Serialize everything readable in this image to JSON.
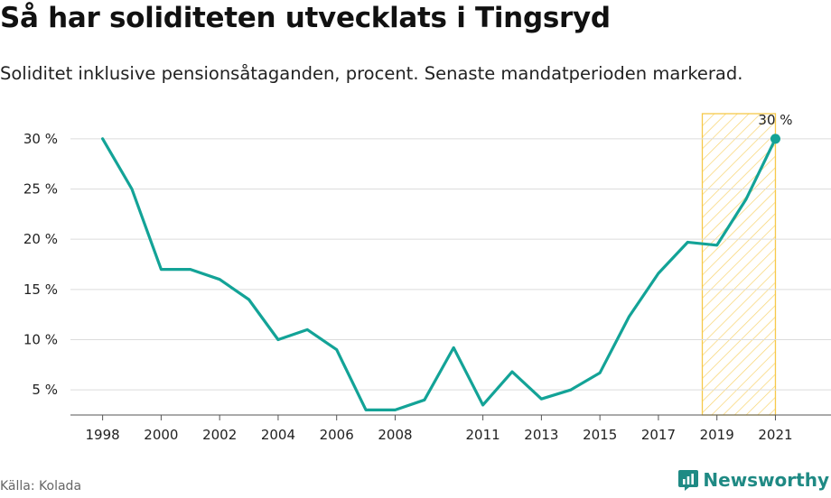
{
  "title": "Så har soliditeten utvecklats i Tingsryd",
  "subtitle": "Soliditet inklusive pensionsåtaganden, procent. Senaste mandatperioden markerad.",
  "source": "Källa: Kolada",
  "brand": {
    "name": "Newsworthy",
    "icon": "newsworthy-logo-icon",
    "color": "#1f8a84"
  },
  "chart_data": {
    "type": "line",
    "x": [
      1998,
      1999,
      2000,
      2001,
      2002,
      2003,
      2004,
      2005,
      2006,
      2007,
      2008,
      2009,
      2010,
      2011,
      2012,
      2013,
      2014,
      2015,
      2016,
      2017,
      2018,
      2019,
      2020,
      2021
    ],
    "values": [
      30,
      25,
      17,
      17,
      16,
      14,
      10,
      11,
      9,
      3,
      3,
      4,
      9.2,
      3.5,
      6.8,
      4.1,
      5,
      6.7,
      12.3,
      16.6,
      19.7,
      19.4,
      24,
      30
    ],
    "x_ticks": [
      "1998",
      "2000",
      "2002",
      "2004",
      "2006",
      "2008",
      "2011",
      "2013",
      "2015",
      "2017",
      "2019",
      "2021"
    ],
    "y_ticks": [
      5,
      10,
      15,
      20,
      25,
      30
    ],
    "y_tick_labels": [
      "5 %",
      "10 %",
      "15 %",
      "20 %",
      "25 %",
      "30 %"
    ],
    "ylim": [
      2.5,
      32.5
    ],
    "xlim": [
      1996.9,
      2022.9
    ],
    "highlight_range": [
      2018.5,
      2021
    ],
    "end_label": "30 %",
    "line_color": "#13a397",
    "highlight_color": "#f6c94a",
    "grid": true
  }
}
